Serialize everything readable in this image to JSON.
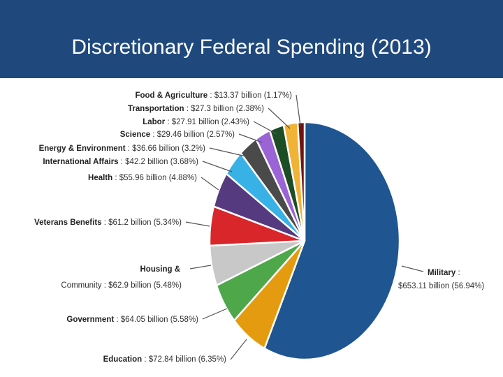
{
  "header": {
    "title": "Discretionary Federal Spending (2013)"
  },
  "colors": {
    "title_bar": "#1f497d",
    "label_text": "#333333",
    "leader_line": "#555555"
  },
  "chart_data": {
    "type": "pie",
    "title": "Discretionary Federal Spending (2013)",
    "unit": "billion",
    "slices": [
      {
        "name": "Military",
        "value": 653.11,
        "percent": 56.94,
        "value_text": "$653.11 billion (56.94%)",
        "color": "#1f5591"
      },
      {
        "name": "Education",
        "value": 72.84,
        "percent": 6.35,
        "value_text": "$72.84 billion (6.35%)",
        "color": "#e49b0f"
      },
      {
        "name": "Government",
        "value": 64.05,
        "percent": 5.58,
        "value_text": "$64.05 billion (5.58%)",
        "color": "#4ea84a"
      },
      {
        "name": "Housing & Community",
        "name_line1": "Housing &",
        "name_line2": "Community",
        "value": 62.9,
        "percent": 5.48,
        "value_text": "$62.9 billion (5.48%)",
        "color": "#c8c8c8"
      },
      {
        "name": "Veterans Benefits",
        "value": 61.2,
        "percent": 5.34,
        "value_text": "$61.2 billion (5.34%)",
        "color": "#d9262a"
      },
      {
        "name": "Health",
        "value": 55.96,
        "percent": 4.88,
        "value_text": "$55.96 billion (4.88%)",
        "color": "#553a80"
      },
      {
        "name": "International Affairs",
        "value": 42.2,
        "percent": 3.68,
        "value_text": "$42.2 billion (3.68%)",
        "color": "#37b1e6"
      },
      {
        "name": "Energy & Environment",
        "value": 36.66,
        "percent": 3.2,
        "value_text": "$36.66 billion (3.2%)",
        "color": "#4a4a4a"
      },
      {
        "name": "Science",
        "value": 29.46,
        "percent": 2.57,
        "value_text": "$29.46 billion (2.57%)",
        "color": "#9a63d6"
      },
      {
        "name": "Labor",
        "value": 27.91,
        "percent": 2.43,
        "value_text": "$27.91 billion (2.43%)",
        "color": "#1c4d25"
      },
      {
        "name": "Transportation",
        "value": 27.3,
        "percent": 2.38,
        "value_text": "$27.3 billion (2.38%)",
        "color": "#f0b335"
      },
      {
        "name": "Food & Agriculture",
        "value": 13.37,
        "percent": 1.17,
        "value_text": "$13.37 billion (1.17%)",
        "color": "#6e1414"
      }
    ]
  }
}
